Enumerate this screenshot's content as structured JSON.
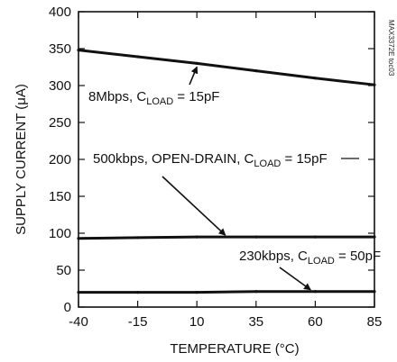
{
  "chart_data": {
    "type": "line",
    "title": "",
    "xlabel": "TEMPERATURE (°C)",
    "ylabel": "SUPPLY CURRENT (μA)",
    "xlim": [
      -40,
      85
    ],
    "ylim": [
      0,
      400
    ],
    "xticks": [
      -40,
      -15,
      10,
      35,
      60,
      85
    ],
    "yticks": [
      0,
      50,
      100,
      150,
      200,
      250,
      300,
      350,
      400
    ],
    "xtick_labels": [
      "-40",
      "-15",
      "10",
      "35",
      "60",
      "85"
    ],
    "ytick_labels": [
      "0",
      "50",
      "100",
      "150",
      "200",
      "250",
      "300",
      "350",
      "400"
    ],
    "grid": false,
    "legend": "none",
    "side_label": "MAX3372E toc03",
    "series": [
      {
        "name": "8Mbps, CLOAD = 15pF",
        "x": [
          -40,
          -15,
          10,
          35,
          60,
          85
        ],
        "y": [
          348,
          339,
          330,
          320,
          310,
          301
        ]
      },
      {
        "name": "500kbps, OPEN-DRAIN, CLOAD = 15pF",
        "x": [
          -40,
          -15,
          10,
          35,
          60,
          85
        ],
        "y": [
          93,
          94,
          95,
          95,
          95,
          95
        ]
      },
      {
        "name": "230kbps, CLOAD = 50pF",
        "x": [
          -40,
          -15,
          10,
          35,
          60,
          85
        ],
        "y": [
          20,
          20,
          20,
          21,
          21,
          21
        ]
      }
    ],
    "annotations": [
      {
        "id": "a1",
        "main": "8Mbps, C",
        "sub": "LOAD",
        "rest": " = 15pF",
        "target_x": 10,
        "target_y": 330
      },
      {
        "id": "a2",
        "main": "500kbps, OPEN-DRAIN, C",
        "sub": "LOAD",
        "rest": " = 15pF",
        "target_x": 22,
        "target_y": 95
      },
      {
        "id": "a3",
        "main": "230kbps, C",
        "sub": "LOAD",
        "rest": " = 50pF",
        "target_x": 58,
        "target_y": 21
      }
    ]
  }
}
